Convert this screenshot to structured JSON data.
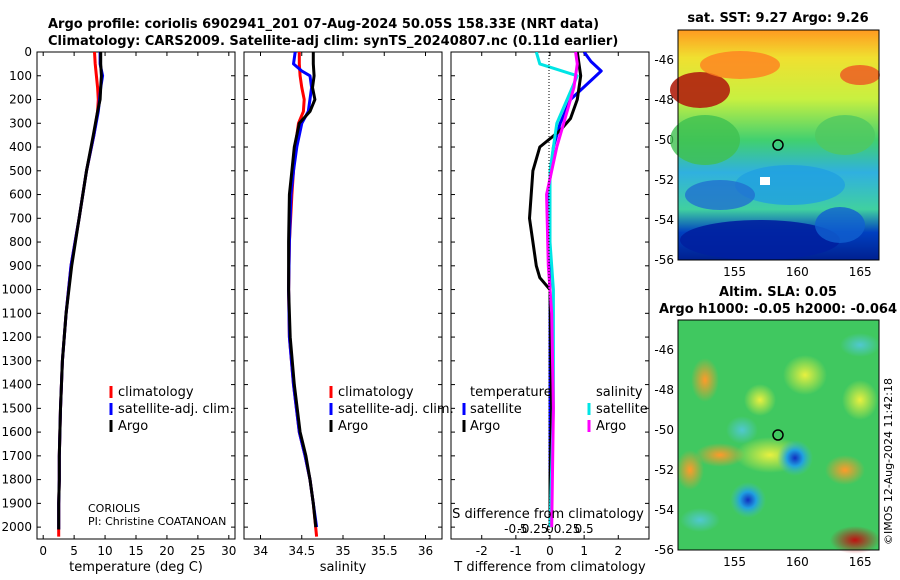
{
  "header": {
    "line1": "Argo profile: coriolis 6902941_201 07-Aug-2024 50.05S 158.33E (NRT data)",
    "line2": "Climatology: CARS2009. Satellite-adj clim: synTS_20240807.nc (0.11d earlier)"
  },
  "colors": {
    "red": "#ff0000",
    "blue": "#0000ff",
    "black": "#000000",
    "cyan": "#00e5e5",
    "magenta": "#ff00ff"
  },
  "chart_data": [
    {
      "type": "line",
      "panel": "temperature",
      "xlabel": "temperature (deg C)",
      "xlim": [
        -1,
        31
      ],
      "xticks": [
        0,
        5,
        10,
        15,
        20,
        25,
        30
      ],
      "ylim": [
        0,
        2050
      ],
      "yticks": [
        0,
        100,
        200,
        300,
        400,
        500,
        600,
        700,
        800,
        900,
        1000,
        1100,
        1200,
        1300,
        1400,
        1500,
        1600,
        1700,
        1800,
        1900,
        2000
      ],
      "legend": [
        "climatology",
        "satellite-adj. clim.",
        "Argo"
      ],
      "annotation": [
        "CORIOLIS",
        "PI: Christine COATANOAN"
      ],
      "series": [
        {
          "name": "climatology",
          "color": "red",
          "x": [
            8.3,
            8.4,
            8.6,
            8.8,
            8.9,
            8.8,
            8.2,
            7.0,
            5.8,
            4.5,
            3.7,
            3.1,
            2.8,
            2.7,
            2.6,
            2.6,
            2.5,
            2.5
          ],
          "y": [
            0,
            50,
            100,
            150,
            200,
            250,
            350,
            500,
            700,
            900,
            1100,
            1300,
            1500,
            1600,
            1700,
            1800,
            1900,
            2040
          ]
        },
        {
          "name": "satellite-adj. clim.",
          "color": "blue",
          "x": [
            9.2,
            9.2,
            9.6,
            9.3,
            9.1,
            8.9,
            8.2,
            7.0,
            5.8,
            4.5,
            3.7,
            3.1,
            2.8,
            2.7,
            2.6,
            2.6,
            2.5,
            2.5
          ],
          "y": [
            0,
            50,
            100,
            150,
            200,
            250,
            350,
            500,
            700,
            900,
            1100,
            1300,
            1500,
            1600,
            1700,
            1800,
            1900,
            2010
          ]
        },
        {
          "name": "Argo",
          "color": "black",
          "x": [
            9.3,
            9.3,
            9.4,
            9.3,
            9.2,
            8.8,
            8.1,
            7.0,
            5.8,
            4.6,
            3.7,
            3.1,
            2.8,
            2.7,
            2.6,
            2.6,
            2.5,
            2.5
          ],
          "y": [
            0,
            50,
            100,
            150,
            200,
            250,
            350,
            500,
            700,
            900,
            1100,
            1300,
            1500,
            1600,
            1700,
            1800,
            1900,
            2010
          ]
        }
      ]
    },
    {
      "type": "line",
      "panel": "salinity",
      "xlabel": "salinity",
      "xlim": [
        33.8,
        36.2
      ],
      "xticks": [
        34,
        34.5,
        35,
        35.5,
        36
      ],
      "ylim": [
        0,
        2050
      ],
      "legend": [
        "climatology",
        "satellite-adj. clim.",
        "Argo"
      ],
      "series": [
        {
          "name": "climatology",
          "color": "red",
          "x": [
            34.47,
            34.47,
            34.48,
            34.5,
            34.53,
            34.52,
            34.46,
            34.42,
            34.4,
            34.38,
            34.35,
            34.34,
            34.35,
            34.4,
            34.47,
            34.54,
            34.6,
            34.64,
            34.68
          ],
          "y": [
            0,
            50,
            100,
            150,
            200,
            250,
            300,
            400,
            500,
            600,
            800,
            1000,
            1200,
            1400,
            1600,
            1700,
            1800,
            1900,
            2040
          ]
        },
        {
          "name": "satellite-adj. clim.",
          "color": "blue",
          "x": [
            34.42,
            34.4,
            34.5,
            34.6,
            34.62,
            34.58,
            34.5,
            34.44,
            34.4,
            34.37,
            34.35,
            34.34,
            34.35,
            34.4,
            34.47,
            34.54,
            34.6,
            34.64,
            34.68
          ],
          "y": [
            0,
            50,
            80,
            100,
            150,
            250,
            300,
            400,
            500,
            600,
            800,
            1000,
            1200,
            1400,
            1600,
            1700,
            1800,
            1900,
            2000
          ]
        },
        {
          "name": "Argo",
          "color": "black",
          "x": [
            34.64,
            34.64,
            34.65,
            34.63,
            34.66,
            34.6,
            34.47,
            34.41,
            34.38,
            34.35,
            34.34,
            34.34,
            34.36,
            34.41,
            34.48,
            34.55,
            34.6,
            34.64,
            34.67
          ],
          "y": [
            0,
            50,
            100,
            150,
            200,
            250,
            300,
            400,
            500,
            600,
            800,
            1000,
            1200,
            1400,
            1600,
            1700,
            1800,
            1900,
            2000
          ]
        }
      ]
    },
    {
      "type": "line",
      "panel": "difference",
      "xlabel": "T difference from climatology",
      "xlim": [
        -2.9,
        2.9
      ],
      "xticks": [
        -2,
        -1,
        0,
        1,
        2
      ],
      "xlabel_top": "S difference from climatology",
      "xticks_top": [
        "-0.5",
        "-0.25",
        "0",
        "0.25",
        "0.5"
      ],
      "ylim": [
        0,
        2050
      ],
      "legend_left": {
        "title": "temperature",
        "items": [
          "satellite",
          "Argo"
        ]
      },
      "legend_right": {
        "title": "salinity",
        "items": [
          "satellite",
          "Argo"
        ]
      },
      "series": [
        {
          "name": "temperature satellite",
          "color": "blue",
          "x": [
            1.0,
            1.2,
            1.5,
            1.2,
            0.6,
            0.3,
            0.1,
            -0.05,
            -0.05,
            0.0,
            0.0,
            0.0,
            0.0,
            0.0
          ],
          "y": [
            0,
            40,
            80,
            120,
            200,
            300,
            400,
            600,
            800,
            1000,
            1200,
            1500,
            1800,
            2000
          ]
        },
        {
          "name": "temperature Argo",
          "color": "black",
          "x": [
            0.8,
            0.9,
            0.8,
            0.6,
            0.3,
            -0.3,
            -0.5,
            -0.6,
            -0.5,
            -0.4,
            -0.3,
            0.0,
            0.05,
            0.0,
            0.0
          ],
          "y": [
            0,
            100,
            200,
            280,
            330,
            400,
            500,
            700,
            800,
            900,
            950,
            1000,
            1500,
            1800,
            2000
          ]
        },
        {
          "name": "salinity satellite",
          "color": "cyan",
          "x": [
            -0.4,
            -0.3,
            0.8,
            0.5,
            0.2,
            0.0,
            0.0,
            0.1,
            0.1,
            0.0
          ],
          "y": [
            0,
            50,
            100,
            200,
            300,
            500,
            800,
            1000,
            1500,
            2000
          ]
        },
        {
          "name": "salinity Argo",
          "color": "magenta",
          "x": [
            0.75,
            0.8,
            0.7,
            0.5,
            0.2,
            -0.1,
            -0.05,
            0.05,
            0.1,
            0.05
          ],
          "y": [
            0,
            50,
            150,
            250,
            400,
            600,
            900,
            1100,
            1500,
            2000
          ]
        }
      ]
    },
    {
      "type": "heatmap",
      "panel": "sst-map",
      "title": "sat. SST: 9.27 Argo: 9.26",
      "xticks": [
        155,
        160,
        165
      ],
      "yticks": [
        -46,
        -48,
        -50,
        -52,
        -54,
        -56
      ],
      "xlim": [
        150.5,
        166.5
      ],
      "ylim": [
        -56,
        -44.5
      ],
      "marker": {
        "lon": 158.3,
        "lat": -50.05
      }
    },
    {
      "type": "heatmap",
      "panel": "sla-map",
      "title1": "Altim. SLA: 0.05",
      "title2": "Argo h1000: -0.05 h2000: -0.064",
      "xticks": [
        155,
        160,
        165
      ],
      "yticks": [
        -46,
        -48,
        -50,
        -52,
        -54,
        -56
      ],
      "xlim": [
        150.5,
        166.5
      ],
      "ylim": [
        -56,
        -44.5
      ],
      "marker": {
        "lon": 158.3,
        "lat": -50.05
      }
    }
  ],
  "footer": {
    "stamp": "©IMOS 12-Aug-2024 11:42:18"
  }
}
